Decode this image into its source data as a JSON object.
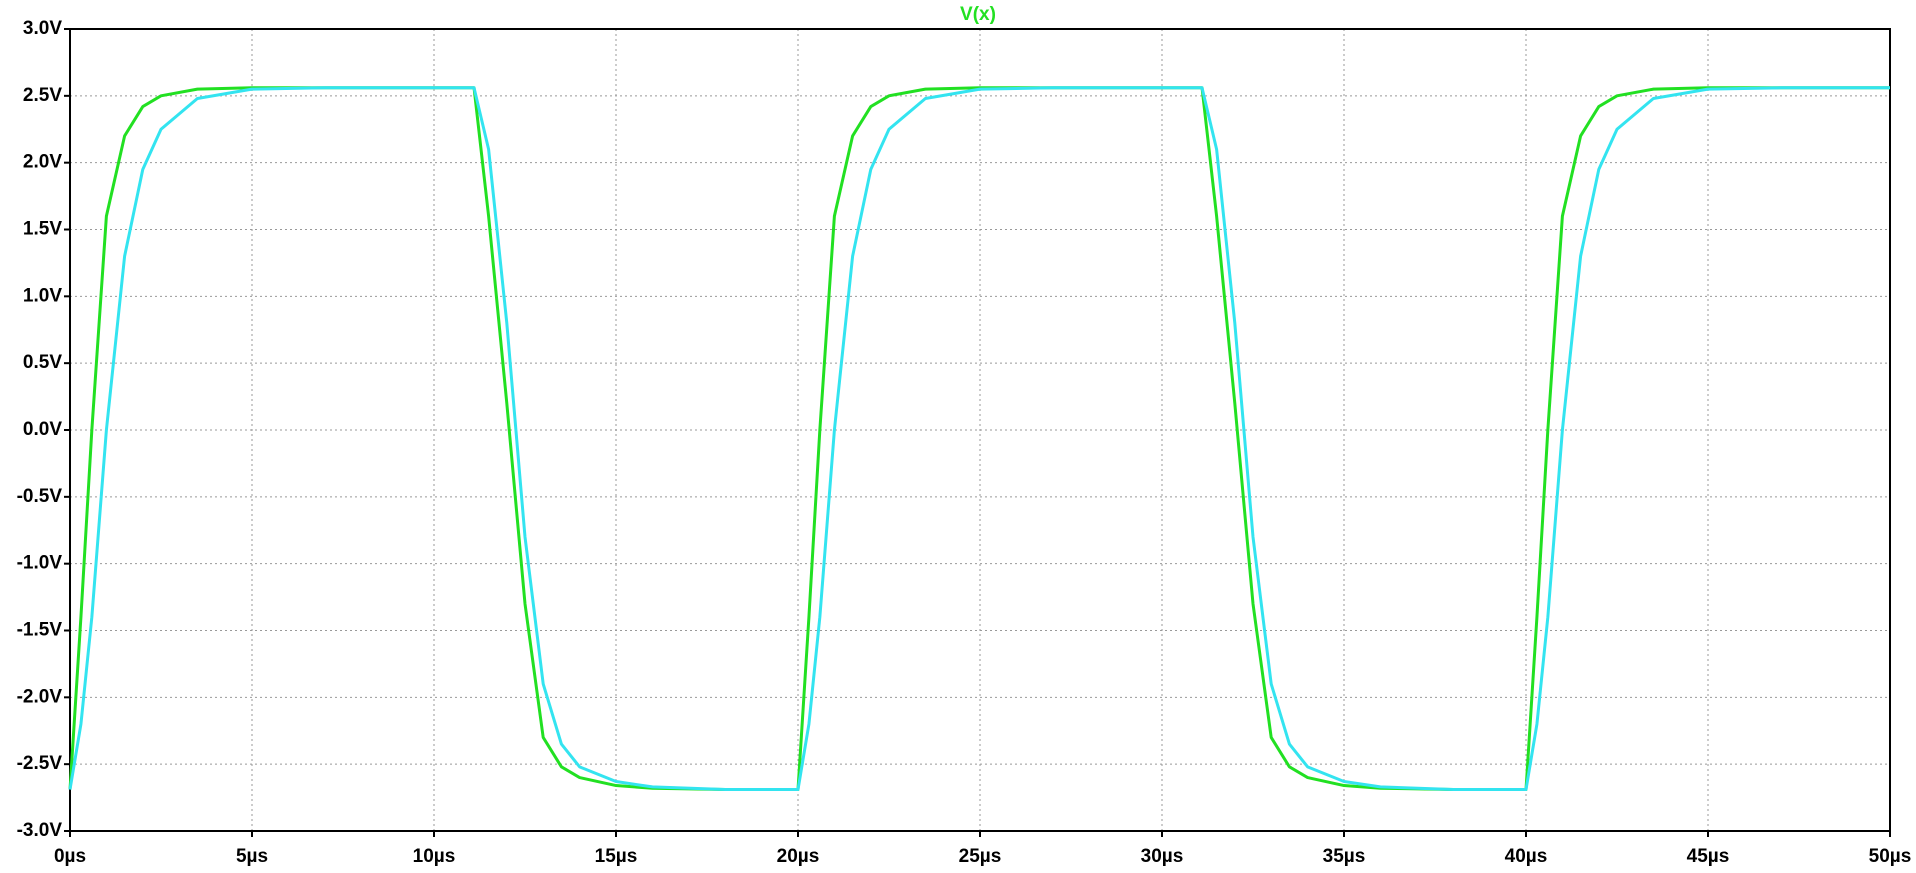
{
  "chart_data": {
    "type": "line",
    "x": [
      0,
      0.3,
      0.6,
      1,
      1.5,
      2,
      2.5,
      3.5,
      5,
      7,
      11.1,
      11.5,
      12,
      12.5,
      13,
      13.5,
      14,
      15,
      16,
      18,
      20,
      20.3,
      20.6,
      21,
      21.5,
      22,
      22.5,
      23.5,
      25,
      27,
      31.1,
      31.5,
      32,
      32.5,
      33,
      33.5,
      34,
      35,
      36,
      38,
      40,
      40.3,
      40.6,
      41,
      41.5,
      42,
      42.5,
      43.5,
      45,
      47,
      50
    ],
    "series": [
      {
        "name": "V(x)",
        "color": "#22e022",
        "values": [
          -2.69,
          -1.4,
          0.0,
          1.6,
          2.2,
          2.42,
          2.5,
          2.55,
          2.56,
          2.56,
          2.56,
          1.6,
          0.2,
          -1.3,
          -2.3,
          -2.52,
          -2.6,
          -2.66,
          -2.68,
          -2.69,
          -2.69,
          -1.4,
          0.0,
          1.6,
          2.2,
          2.42,
          2.5,
          2.55,
          2.56,
          2.56,
          2.56,
          1.6,
          0.2,
          -1.3,
          -2.3,
          -2.52,
          -2.6,
          -2.66,
          -2.68,
          -2.69,
          -2.69,
          -1.4,
          0.0,
          1.6,
          2.2,
          2.42,
          2.5,
          2.55,
          2.56,
          2.56,
          2.56
        ]
      },
      {
        "color": "#33e4f0",
        "values": [
          -2.69,
          -2.2,
          -1.4,
          0.0,
          1.3,
          1.95,
          2.25,
          2.48,
          2.55,
          2.56,
          2.56,
          2.1,
          0.8,
          -0.8,
          -1.9,
          -2.35,
          -2.52,
          -2.63,
          -2.67,
          -2.69,
          -2.69,
          -2.2,
          -1.4,
          0.0,
          1.3,
          1.95,
          2.25,
          2.48,
          2.55,
          2.56,
          2.56,
          2.1,
          0.8,
          -0.8,
          -1.9,
          -2.35,
          -2.52,
          -2.63,
          -2.67,
          -2.69,
          -2.69,
          -2.2,
          -1.4,
          0.0,
          1.3,
          1.95,
          2.25,
          2.48,
          2.55,
          2.56,
          2.56
        ]
      }
    ],
    "xlim": [
      0,
      50
    ],
    "xticks": [
      {
        "value": 0,
        "label": "0µs"
      },
      {
        "value": 5,
        "label": "5µs"
      },
      {
        "value": 10,
        "label": "10µs"
      },
      {
        "value": 15,
        "label": "15µs"
      },
      {
        "value": 20,
        "label": "20µs"
      },
      {
        "value": 25,
        "label": "25µs"
      },
      {
        "value": 30,
        "label": "30µs"
      },
      {
        "value": 35,
        "label": "35µs"
      },
      {
        "value": 40,
        "label": "40µs"
      },
      {
        "value": 45,
        "label": "45µs"
      },
      {
        "value": 50,
        "label": "50µs"
      }
    ],
    "ylim": [
      -3,
      3
    ],
    "yticks": [
      {
        "value": 3,
        "label": "3.0V"
      },
      {
        "value": 2.5,
        "label": "2.5V"
      },
      {
        "value": 2,
        "label": "2.0V"
      },
      {
        "value": 1.5,
        "label": "1.5V"
      },
      {
        "value": 1,
        "label": "1.0V"
      },
      {
        "value": 0.5,
        "label": "0.5V"
      },
      {
        "value": 0,
        "label": "0.0V"
      },
      {
        "value": -0.5,
        "label": "-0.5V"
      },
      {
        "value": -1,
        "label": "-1.0V"
      },
      {
        "value": -1.5,
        "label": "-1.5V"
      },
      {
        "value": -2,
        "label": "-2.0V"
      },
      {
        "value": -2.5,
        "label": "-2.5V"
      },
      {
        "value": -3,
        "label": "-3.0V"
      }
    ],
    "grid": true
  }
}
